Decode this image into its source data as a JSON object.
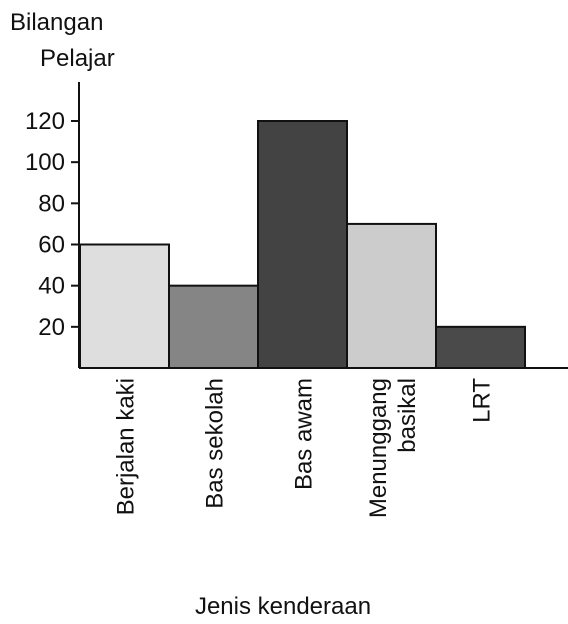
{
  "chart_data": {
    "type": "bar",
    "ylabel_lines": [
      "Bilangan",
      "Pelajar"
    ],
    "xlabel": "Jenis kenderaan",
    "categories": [
      [
        "Berjalan kaki"
      ],
      [
        "Bas sekolah"
      ],
      [
        "Bas awam"
      ],
      [
        "Menunggang",
        "basikal"
      ],
      [
        "LRT"
      ]
    ],
    "values": [
      60,
      40,
      120,
      70,
      20
    ],
    "bar_colors": [
      "#dedede",
      "#858585",
      "#434343",
      "#cccccc",
      "#4a4a4a"
    ],
    "yticks": [
      20,
      40,
      60,
      80,
      100,
      120
    ],
    "ylim": [
      0,
      120
    ],
    "grid": false
  }
}
